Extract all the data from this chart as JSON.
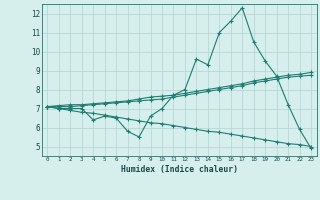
{
  "xlabel": "Humidex (Indice chaleur)",
  "x": [
    0,
    1,
    2,
    3,
    4,
    5,
    6,
    7,
    8,
    9,
    10,
    11,
    12,
    13,
    14,
    15,
    16,
    17,
    18,
    19,
    20,
    21,
    22,
    23
  ],
  "line1": [
    7.1,
    7.0,
    7.0,
    7.0,
    6.4,
    6.6,
    6.5,
    5.8,
    5.5,
    6.6,
    7.0,
    7.7,
    8.0,
    9.6,
    9.3,
    11.0,
    11.6,
    12.3,
    10.5,
    9.5,
    8.7,
    7.2,
    5.9,
    4.9
  ],
  "line2": [
    7.1,
    7.15,
    7.2,
    7.2,
    7.25,
    7.3,
    7.35,
    7.4,
    7.5,
    7.6,
    7.65,
    7.7,
    7.8,
    7.9,
    8.0,
    8.1,
    8.2,
    8.3,
    8.45,
    8.55,
    8.65,
    8.75,
    8.8,
    8.9
  ],
  "line3": [
    7.1,
    7.1,
    7.1,
    7.15,
    7.2,
    7.25,
    7.3,
    7.35,
    7.4,
    7.45,
    7.5,
    7.6,
    7.7,
    7.8,
    7.9,
    8.0,
    8.1,
    8.2,
    8.35,
    8.45,
    8.55,
    8.65,
    8.7,
    8.75
  ],
  "line4": [
    7.1,
    7.0,
    6.9,
    6.8,
    6.75,
    6.65,
    6.55,
    6.45,
    6.35,
    6.25,
    6.2,
    6.1,
    6.0,
    5.9,
    5.8,
    5.75,
    5.65,
    5.55,
    5.45,
    5.35,
    5.25,
    5.15,
    5.1,
    5.0
  ],
  "bg_color": "#d6eeec",
  "line_color": "#1e7d72",
  "grid_color": "#b8d8d5",
  "ylim": [
    4.5,
    12.5
  ],
  "xlim": [
    -0.5,
    23.5
  ],
  "yticks": [
    5,
    6,
    7,
    8,
    9,
    10,
    11,
    12
  ]
}
